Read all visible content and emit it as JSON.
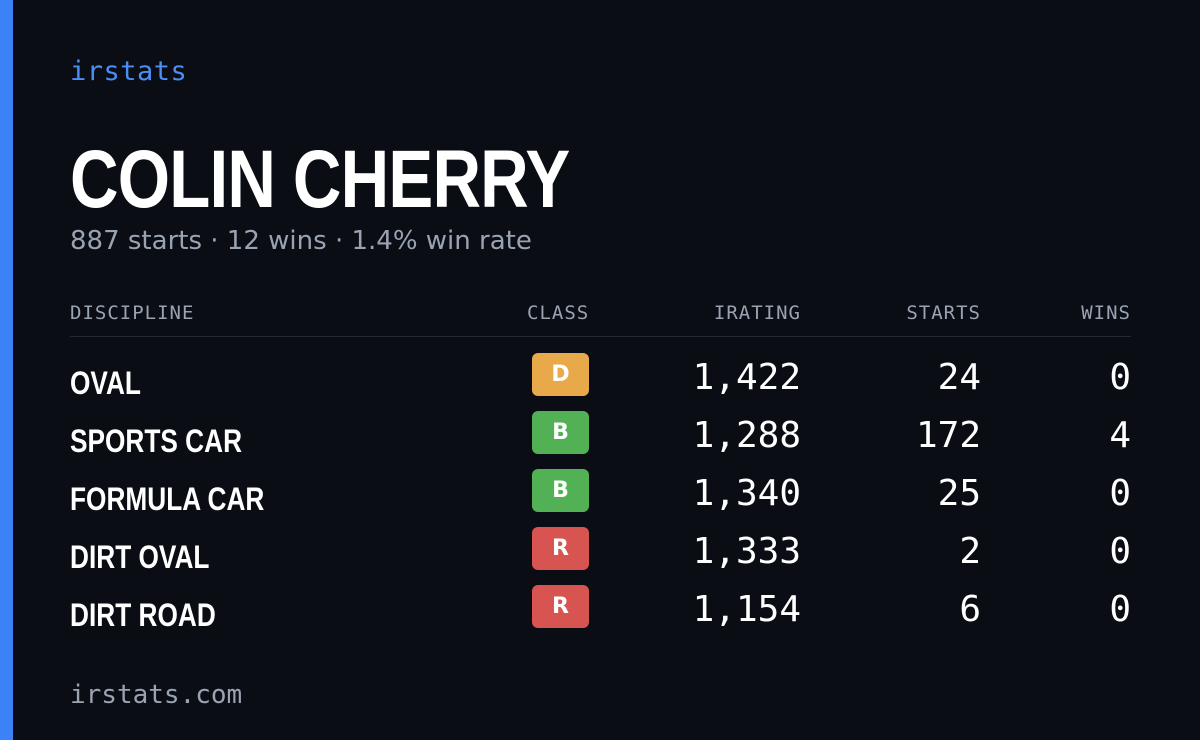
{
  "brand": "irstats",
  "driver": {
    "name": "COLIN CHERRY",
    "starts_text": "887 starts",
    "wins_text": "12 wins",
    "win_rate_text": "1.4% win rate",
    "separator": "·"
  },
  "table": {
    "headers": {
      "discipline": "DISCIPLINE",
      "class": "CLASS",
      "irating": "IRATING",
      "starts": "STARTS",
      "wins": "WINS"
    },
    "rows": [
      {
        "discipline": "OVAL",
        "class": "D",
        "class_color": "#e8a94a",
        "irating": "1,422",
        "starts": "24",
        "wins": "0"
      },
      {
        "discipline": "SPORTS CAR",
        "class": "B",
        "class_color": "#52b155",
        "irating": "1,288",
        "starts": "172",
        "wins": "4"
      },
      {
        "discipline": "FORMULA CAR",
        "class": "B",
        "class_color": "#52b155",
        "irating": "1,340",
        "starts": "25",
        "wins": "0"
      },
      {
        "discipline": "DIRT OVAL",
        "class": "R",
        "class_color": "#d85450",
        "irating": "1,333",
        "starts": "2",
        "wins": "0"
      },
      {
        "discipline": "DIRT ROAD",
        "class": "R",
        "class_color": "#d85450",
        "irating": "1,154",
        "starts": "6",
        "wins": "0"
      }
    ]
  },
  "footer": "irstats.com",
  "colors": {
    "background": "#0a0d14",
    "accent": "#3b82f6",
    "muted_text": "#9aa3b2"
  }
}
